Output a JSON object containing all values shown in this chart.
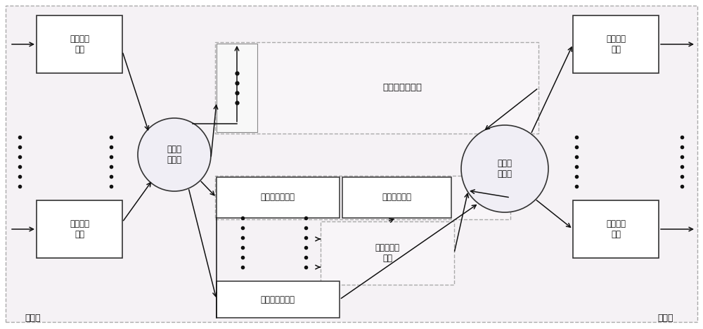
{
  "bg_color": "#ffffff",
  "outer_fill": "#f5f2f5",
  "outer_edge": "#aaaaaa",
  "box_fill": "#ffffff",
  "box_edge": "#333333",
  "dashed_fill": "#f8f5f8",
  "dashed_edge": "#aaaaaa",
  "circle_fill": "#f0eef5",
  "circle_edge": "#333333",
  "arrow_color": "#111111",
  "dot_color": "#111111",
  "text_color": "#111111",
  "font_size": 8.5,
  "labels": {
    "input_buf_top": "输入缓存\n模块",
    "input_buf_bot": "输入缓存\n模块",
    "recv_sched": "接收调\n度模块",
    "shared_lookup": "共享查找表模块",
    "port_lookup_top": "端口查找表模块",
    "port_lookup_bot": "端口查找表模块",
    "output_queue": "输出队列模块",
    "filter_police": "过滤和警管\n模块",
    "send_sched": "发送调\n度模块",
    "output_buf_top": "输出缓存\n模块",
    "output_buf_bot": "输出缓存\n模块",
    "input_end": "输入端",
    "output_end": "输出端"
  }
}
